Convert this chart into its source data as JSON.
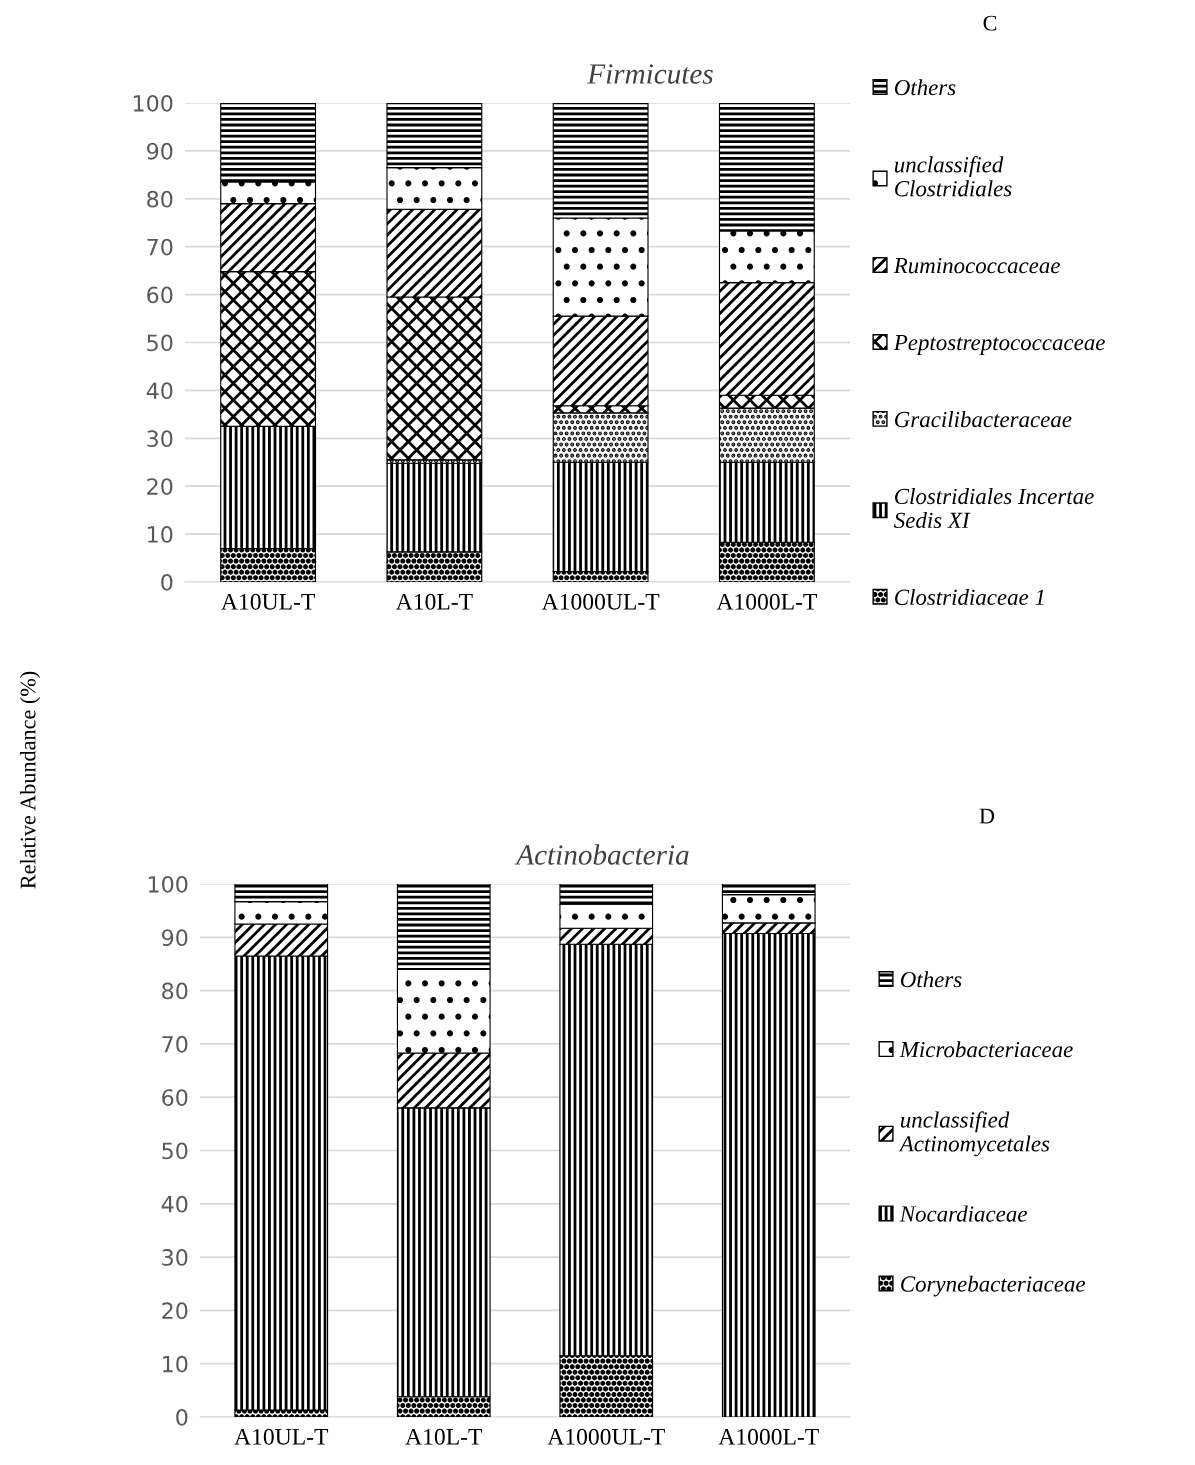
{
  "chart_data": [
    {
      "type": "bar",
      "stacked": true,
      "title": "Firmicutes",
      "ylabel": "Relative Abundance (%)",
      "annotations": [
        "C"
      ],
      "categories": [
        "A10UL-T",
        "A10L-T",
        "A1000UL-T",
        "A1000L-T"
      ],
      "ylim": [
        0,
        100
      ],
      "yticks": [
        0,
        10,
        20,
        30,
        40,
        50,
        60,
        70,
        80,
        90,
        100
      ],
      "grid": "y",
      "legend": "right",
      "series": [
        {
          "name": "Clostridiaceae 1",
          "color": "#000000",
          "values": [
            7,
            6.3,
            2.2,
            8.3
          ]
        },
        {
          "name": "Clostridiales Incertae Sedis XI",
          "color": "#000000",
          "values": [
            25.5,
            18.5,
            22.8,
            16.7
          ]
        },
        {
          "name": "Gracilibacteraceae",
          "color": "#000000",
          "values": [
            0,
            0.7,
            10.3,
            11.3
          ]
        },
        {
          "name": "Peptostreptococcaceae",
          "color": "#000000",
          "values": [
            32.3,
            34,
            1.5,
            2.7
          ]
        },
        {
          "name": "Ruminococcaceae",
          "color": "#000000",
          "values": [
            14.2,
            18.3,
            18.7,
            23.5
          ]
        },
        {
          "name": "unclassified Clostridiales",
          "color": "#000000",
          "values": [
            4.5,
            8.7,
            20.5,
            10.8
          ]
        },
        {
          "name": "Others",
          "color": "#000000",
          "values": [
            16.5,
            13.5,
            24,
            26.7
          ]
        }
      ]
    },
    {
      "type": "bar",
      "stacked": true,
      "title": "Actinobacteria",
      "annotations": [
        "D"
      ],
      "categories": [
        "A10UL-T",
        "A10L-T",
        "A1000UL-T",
        "A1000L-T"
      ],
      "ylim": [
        0,
        100
      ],
      "yticks": [
        0,
        10,
        20,
        30,
        40,
        50,
        60,
        70,
        80,
        90,
        100
      ],
      "grid": "y",
      "legend": "right",
      "series": [
        {
          "name": "Corynebacteriaceae",
          "color": "#000000",
          "values": [
            1.3,
            3.8,
            11.5,
            0
          ]
        },
        {
          "name": "Nocardiaceae",
          "color": "#000000",
          "values": [
            85.2,
            54.2,
            77.2,
            90.7
          ]
        },
        {
          "name": "unclassified Actinomycetales",
          "color": "#000000",
          "values": [
            6,
            10.3,
            3,
            2
          ]
        },
        {
          "name": "Microbacteriaceae",
          "color": "#000000",
          "values": [
            4.2,
            15.7,
            4.5,
            5.3
          ]
        },
        {
          "name": "Others",
          "color": "#000000",
          "values": [
            3.3,
            16,
            3.8,
            2
          ]
        }
      ]
    }
  ]
}
